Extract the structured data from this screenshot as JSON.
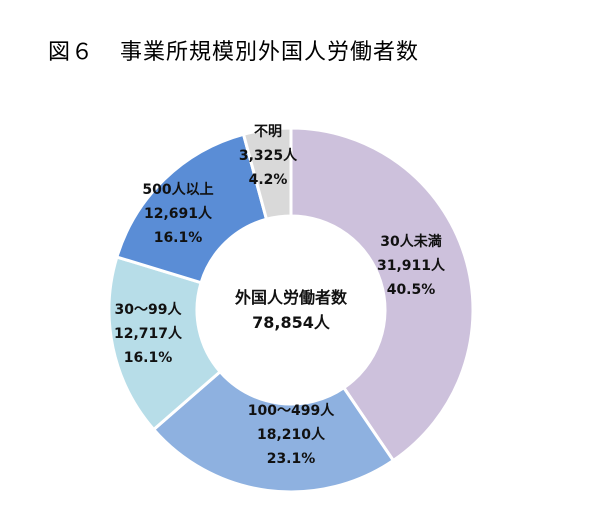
{
  "page": {
    "figure_number": "図６",
    "title": "事業所規模別外国人労働者数"
  },
  "chart_data": {
    "type": "pie",
    "title": "事業所規模別外国人労働者数",
    "total_label": "外国人労働者数",
    "total_value": "78,854人",
    "slices": [
      {
        "category": "30人未満",
        "count": "31,911人",
        "percent": "40.5%",
        "value": 40.5,
        "color": "#cdc1dc"
      },
      {
        "category": "100～499人",
        "count": "18,210人",
        "percent": "23.1%",
        "value": 23.1,
        "color": "#8eb1e0"
      },
      {
        "category": "30～99人",
        "count": "12,717人",
        "percent": "16.1%",
        "value": 16.1,
        "color": "#b7dde8"
      },
      {
        "category": "500人以上",
        "count": "12,691人",
        "percent": "16.1%",
        "value": 16.1,
        "color": "#5a8dd6"
      },
      {
        "category": "不明",
        "count": "3,325人",
        "percent": "4.2%",
        "value": 4.2,
        "color": "#d9d9d9"
      }
    ]
  }
}
